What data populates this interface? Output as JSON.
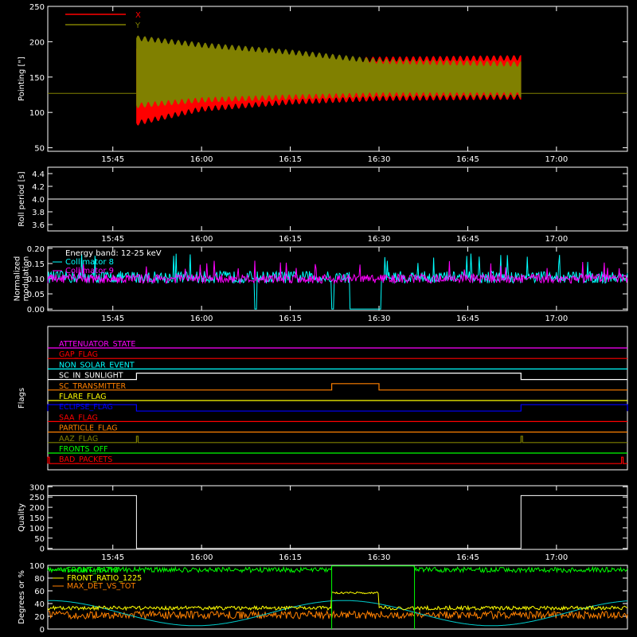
{
  "chart_data": [
    {
      "type": "line",
      "id": "pointing",
      "ylabel": "Pointing [\"]",
      "ylim": [
        45,
        250
      ],
      "yticks": [
        50,
        100,
        150,
        200,
        250
      ],
      "xlim": [
        "15:34",
        "17:12"
      ],
      "xticks": [
        "15:45",
        "16:00",
        "16:15",
        "16:30",
        "16:45",
        "17:00"
      ],
      "legend_position": "top-left",
      "reference_y": 127,
      "data_window": [
        "15:49",
        "16:54"
      ],
      "series": [
        {
          "name": "X",
          "color": "#ff0000",
          "envelope_upper": [
            {
              "t": "15:49",
              "v": 190
            },
            {
              "t": "16:00",
              "v": 180
            },
            {
              "t": "16:15",
              "v": 172
            },
            {
              "t": "16:30",
              "v": 175
            },
            {
              "t": "16:54",
              "v": 177
            }
          ],
          "envelope_lower": [
            {
              "t": "15:49",
              "v": 85
            },
            {
              "t": "16:00",
              "v": 105
            },
            {
              "t": "16:15",
              "v": 115
            },
            {
              "t": "16:30",
              "v": 120
            },
            {
              "t": "16:54",
              "v": 122
            }
          ]
        },
        {
          "name": "Y",
          "color": "#808000",
          "envelope_upper": [
            {
              "t": "15:49",
              "v": 205
            },
            {
              "t": "16:00",
              "v": 195
            },
            {
              "t": "16:15",
              "v": 185
            },
            {
              "t": "16:30",
              "v": 172
            },
            {
              "t": "16:54",
              "v": 168
            }
          ],
          "envelope_lower": [
            {
              "t": "15:49",
              "v": 110
            },
            {
              "t": "16:00",
              "v": 118
            },
            {
              "t": "16:15",
              "v": 122
            },
            {
              "t": "16:30",
              "v": 125
            },
            {
              "t": "16:54",
              "v": 125
            }
          ]
        }
      ]
    },
    {
      "type": "line",
      "id": "roll-period",
      "ylabel": "Roll period [s]",
      "ylim": [
        3.5,
        4.5
      ],
      "yticks": [
        "3.6",
        "3.8",
        "4.0",
        "4.2",
        "4.4"
      ],
      "xticks": [
        "15:45",
        "16:00",
        "16:15",
        "16:30",
        "16:45",
        "17:00"
      ],
      "series": [
        {
          "name": "",
          "color": "#ffffff",
          "x": [
            "15:34",
            "17:12"
          ],
          "y": [
            4.0,
            4.0
          ]
        }
      ]
    },
    {
      "type": "line",
      "id": "modulation",
      "ylabel": "Normalized\nmodulation",
      "ylim": [
        -0.005,
        0.205
      ],
      "yticks": [
        "0.00",
        "0.05",
        "0.10",
        "0.15",
        "0.20"
      ],
      "xticks": [
        "15:45",
        "16:00",
        "16:15",
        "16:30",
        "16:45",
        "17:00"
      ],
      "annotations": [
        "Energy band: 12-25 keV"
      ],
      "series": [
        {
          "name": "Collimator 8",
          "color": "#00ffff",
          "baseline": 0.105,
          "noise": 0.02
        },
        {
          "name": "Collimator 9",
          "color": "#ff00ff",
          "baseline": 0.1,
          "noise": 0.015
        }
      ],
      "dropouts": [
        [
          "16:09",
          "16:09"
        ],
        [
          "16:22",
          "16:22"
        ],
        [
          "16:25",
          "16:30"
        ]
      ]
    },
    {
      "type": "step",
      "id": "flags",
      "ylabel": "Flags",
      "series": [
        {
          "name": "ATTENUATOR_STATE",
          "color": "#ff00ff",
          "high": []
        },
        {
          "name": "GAP_FLAG",
          "color": "#ff0000",
          "high": []
        },
        {
          "name": "NON_SOLAR_EVENT",
          "color": "#00ffff",
          "high": []
        },
        {
          "name": "SC_IN_SUNLIGHT",
          "color": "#ffffff",
          "high": [
            [
              "15:49",
              "16:54"
            ]
          ]
        },
        {
          "name": "SC_TRANSMITTER",
          "color": "#ff8000",
          "high": [
            [
              "16:22",
              "16:30"
            ]
          ]
        },
        {
          "name": "FLARE_FLAG",
          "color": "#ffff00",
          "high": []
        },
        {
          "name": "ECLIPSE_FLAG",
          "color": "#0000ff",
          "high": [
            [
              "15:34",
              "15:49"
            ],
            [
              "16:54",
              "17:12"
            ]
          ]
        },
        {
          "name": "SAA_FLAG",
          "color": "#ff0000",
          "high": []
        },
        {
          "name": "PARTICLE_FLAG",
          "color": "#ff8000",
          "high": []
        },
        {
          "name": "AAZ_FLAG",
          "color": "#808000",
          "high": [
            [
              "15:49",
              "15:49"
            ],
            [
              "16:54",
              "16:54"
            ]
          ]
        },
        {
          "name": "FRONTS_OFF",
          "color": "#00ff00",
          "high": []
        },
        {
          "name": "BAD_PACKETS",
          "color": "#ff0000",
          "high": [
            [
              "15:34",
              "15:34"
            ],
            [
              "17:11",
              "17:11"
            ]
          ]
        }
      ]
    },
    {
      "type": "step",
      "id": "quality",
      "ylabel": "Quality",
      "ylim": [
        -5,
        305
      ],
      "yticks": [
        "0",
        "50",
        "100",
        "150",
        "200",
        "250",
        "300"
      ],
      "xticks": [
        "15:45",
        "16:00",
        "16:15",
        "16:30",
        "16:45",
        "17:00"
      ],
      "series": [
        {
          "name": "",
          "color": "#ffffff",
          "points": [
            {
              "t": "15:34",
              "v": 257
            },
            {
              "t": "15:49",
              "v": 257
            },
            {
              "t": "15:49",
              "v": 0
            },
            {
              "t": "16:54",
              "v": 0
            },
            {
              "t": "16:54",
              "v": 257
            },
            {
              "t": "17:12",
              "v": 257
            }
          ]
        }
      ]
    },
    {
      "type": "line",
      "id": "ratios",
      "ylabel": "Degrees or %",
      "ylim": [
        0,
        100
      ],
      "yticks": [
        "0",
        "20",
        "40",
        "60",
        "80",
        "100"
      ],
      "xticks": [
        "15:45",
        "16:00",
        "16:15",
        "16:30",
        "16:45",
        "17:00"
      ],
      "series": [
        {
          "name": "FRONT_RATIO",
          "color": "#00ff00",
          "baseline": 93,
          "noise": 4
        },
        {
          "name": "FRONT_RATIO_1225",
          "color": "#ffff00",
          "baseline": 33,
          "noise": 3
        },
        {
          "name": "MAX_DET_VS_TOT",
          "color": "#ff8000",
          "baseline": 22,
          "noise": 6
        },
        {
          "name": "",
          "color": "#00cccc",
          "note": "smooth periodic curve"
        }
      ],
      "segments": {
        "green_plateau": [
          "16:22",
          "16:36"
        ],
        "yellow_plateau": [
          "16:22",
          "16:30"
        ],
        "yellow_plateau_value": 57
      }
    }
  ]
}
